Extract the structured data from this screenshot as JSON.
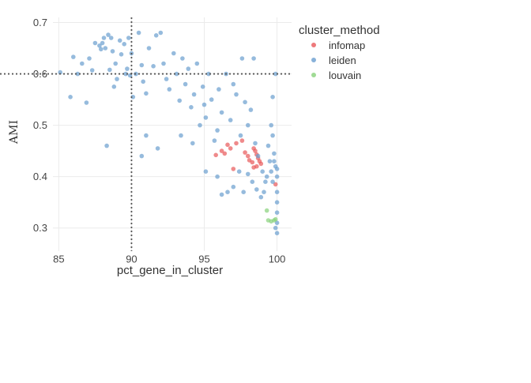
{
  "chart_data": {
    "type": "scatter",
    "title": "",
    "xlabel": "pct_gene_in_cluster",
    "ylabel": "AMI",
    "xlim": [
      84.6,
      101
    ],
    "ylim": [
      0.255,
      0.71
    ],
    "xticks": [
      85,
      90,
      95,
      100
    ],
    "yticks": [
      0.3,
      0.4,
      0.5,
      0.6,
      0.7
    ],
    "xtick_labels": [
      "85",
      "90",
      "95",
      "100"
    ],
    "ytick_labels": [
      "0.3",
      "0.4",
      "0.5",
      "0.6",
      "0.7"
    ],
    "grid": true,
    "reference_lines": {
      "x": 90,
      "y": 0.6,
      "style": "dotted"
    },
    "legend": {
      "title": "cluster_method",
      "position": "right"
    },
    "series": [
      {
        "name": "infomap",
        "color": "#e8585a",
        "points": [
          [
            96.2,
            0.45
          ],
          [
            96.4,
            0.445
          ],
          [
            96.6,
            0.462
          ],
          [
            96.8,
            0.455
          ],
          [
            97.2,
            0.465
          ],
          [
            97.6,
            0.47
          ],
          [
            97.8,
            0.447
          ],
          [
            98.0,
            0.44
          ],
          [
            98.1,
            0.432
          ],
          [
            98.3,
            0.428
          ],
          [
            98.4,
            0.455
          ],
          [
            98.5,
            0.45
          ],
          [
            98.6,
            0.443
          ],
          [
            98.7,
            0.436
          ],
          [
            98.8,
            0.43
          ],
          [
            98.9,
            0.425
          ],
          [
            98.6,
            0.42
          ],
          [
            98.4,
            0.418
          ],
          [
            95.8,
            0.442
          ],
          [
            97.0,
            0.415
          ],
          [
            99.9,
            0.385
          ]
        ]
      },
      {
        "name": "leiden",
        "color": "#6a9ecf",
        "points": [
          [
            85.1,
            0.603
          ],
          [
            85.8,
            0.555
          ],
          [
            86.0,
            0.633
          ],
          [
            86.3,
            0.6
          ],
          [
            86.6,
            0.62
          ],
          [
            86.9,
            0.544
          ],
          [
            87.1,
            0.63
          ],
          [
            87.3,
            0.607
          ],
          [
            87.5,
            0.66
          ],
          [
            87.8,
            0.655
          ],
          [
            87.9,
            0.648
          ],
          [
            88.0,
            0.66
          ],
          [
            88.1,
            0.67
          ],
          [
            88.2,
            0.65
          ],
          [
            88.4,
            0.676
          ],
          [
            88.5,
            0.608
          ],
          [
            88.6,
            0.67
          ],
          [
            88.7,
            0.644
          ],
          [
            88.8,
            0.575
          ],
          [
            88.9,
            0.62
          ],
          [
            89.0,
            0.59
          ],
          [
            89.2,
            0.665
          ],
          [
            89.3,
            0.638
          ],
          [
            89.5,
            0.658
          ],
          [
            89.6,
            0.6
          ],
          [
            89.7,
            0.61
          ],
          [
            89.8,
            0.67
          ],
          [
            89.9,
            0.597
          ],
          [
            90.0,
            0.64
          ],
          [
            90.1,
            0.555
          ],
          [
            90.3,
            0.6
          ],
          [
            90.5,
            0.68
          ],
          [
            90.7,
            0.617
          ],
          [
            90.8,
            0.585
          ],
          [
            91.0,
            0.562
          ],
          [
            91.2,
            0.65
          ],
          [
            91.5,
            0.615
          ],
          [
            91.7,
            0.675
          ],
          [
            92.0,
            0.68
          ],
          [
            92.2,
            0.62
          ],
          [
            92.4,
            0.59
          ],
          [
            92.6,
            0.57
          ],
          [
            92.9,
            0.64
          ],
          [
            93.1,
            0.6
          ],
          [
            93.3,
            0.548
          ],
          [
            93.5,
            0.63
          ],
          [
            93.7,
            0.58
          ],
          [
            93.9,
            0.61
          ],
          [
            94.1,
            0.535
          ],
          [
            94.3,
            0.56
          ],
          [
            94.5,
            0.62
          ],
          [
            94.7,
            0.5
          ],
          [
            94.9,
            0.575
          ],
          [
            95.0,
            0.54
          ],
          [
            95.1,
            0.515
          ],
          [
            95.3,
            0.6
          ],
          [
            95.5,
            0.55
          ],
          [
            95.7,
            0.47
          ],
          [
            95.9,
            0.49
          ],
          [
            96.0,
            0.57
          ],
          [
            96.2,
            0.525
          ],
          [
            96.5,
            0.6
          ],
          [
            96.8,
            0.51
          ],
          [
            97.0,
            0.58
          ],
          [
            97.2,
            0.56
          ],
          [
            97.5,
            0.48
          ],
          [
            97.8,
            0.545
          ],
          [
            98.0,
            0.5
          ],
          [
            98.2,
            0.53
          ],
          [
            98.5,
            0.465
          ],
          [
            98.7,
            0.44
          ],
          [
            99.0,
            0.41
          ],
          [
            99.2,
            0.39
          ],
          [
            99.4,
            0.46
          ],
          [
            99.5,
            0.43
          ],
          [
            99.6,
            0.5
          ],
          [
            99.7,
            0.48
          ],
          [
            99.8,
            0.445
          ],
          [
            99.9,
            0.42
          ],
          [
            100.0,
            0.415
          ],
          [
            100.0,
            0.4
          ],
          [
            100.0,
            0.37
          ],
          [
            100.0,
            0.35
          ],
          [
            100.0,
            0.33
          ],
          [
            100.0,
            0.31
          ],
          [
            100.0,
            0.29
          ],
          [
            99.9,
            0.3
          ],
          [
            99.8,
            0.43
          ],
          [
            99.7,
            0.39
          ],
          [
            99.6,
            0.41
          ],
          [
            99.3,
            0.4
          ],
          [
            99.1,
            0.37
          ],
          [
            98.9,
            0.36
          ],
          [
            98.6,
            0.375
          ],
          [
            98.3,
            0.39
          ],
          [
            98.0,
            0.405
          ],
          [
            97.7,
            0.37
          ],
          [
            97.4,
            0.41
          ],
          [
            97.0,
            0.38
          ],
          [
            96.6,
            0.37
          ],
          [
            96.2,
            0.365
          ],
          [
            95.9,
            0.4
          ],
          [
            95.1,
            0.41
          ],
          [
            88.3,
            0.46
          ],
          [
            91.0,
            0.48
          ],
          [
            91.8,
            0.455
          ],
          [
            90.7,
            0.44
          ],
          [
            94.2,
            0.465
          ],
          [
            93.4,
            0.48
          ],
          [
            98.4,
            0.63
          ],
          [
            97.6,
            0.63
          ],
          [
            99.7,
            0.555
          ],
          [
            99.9,
            0.6
          ]
        ]
      },
      {
        "name": "louvain",
        "color": "#88d27a",
        "points": [
          [
            99.4,
            0.315
          ],
          [
            99.6,
            0.313
          ],
          [
            99.8,
            0.315
          ],
          [
            99.9,
            0.317
          ],
          [
            99.3,
            0.334
          ]
        ]
      }
    ]
  }
}
